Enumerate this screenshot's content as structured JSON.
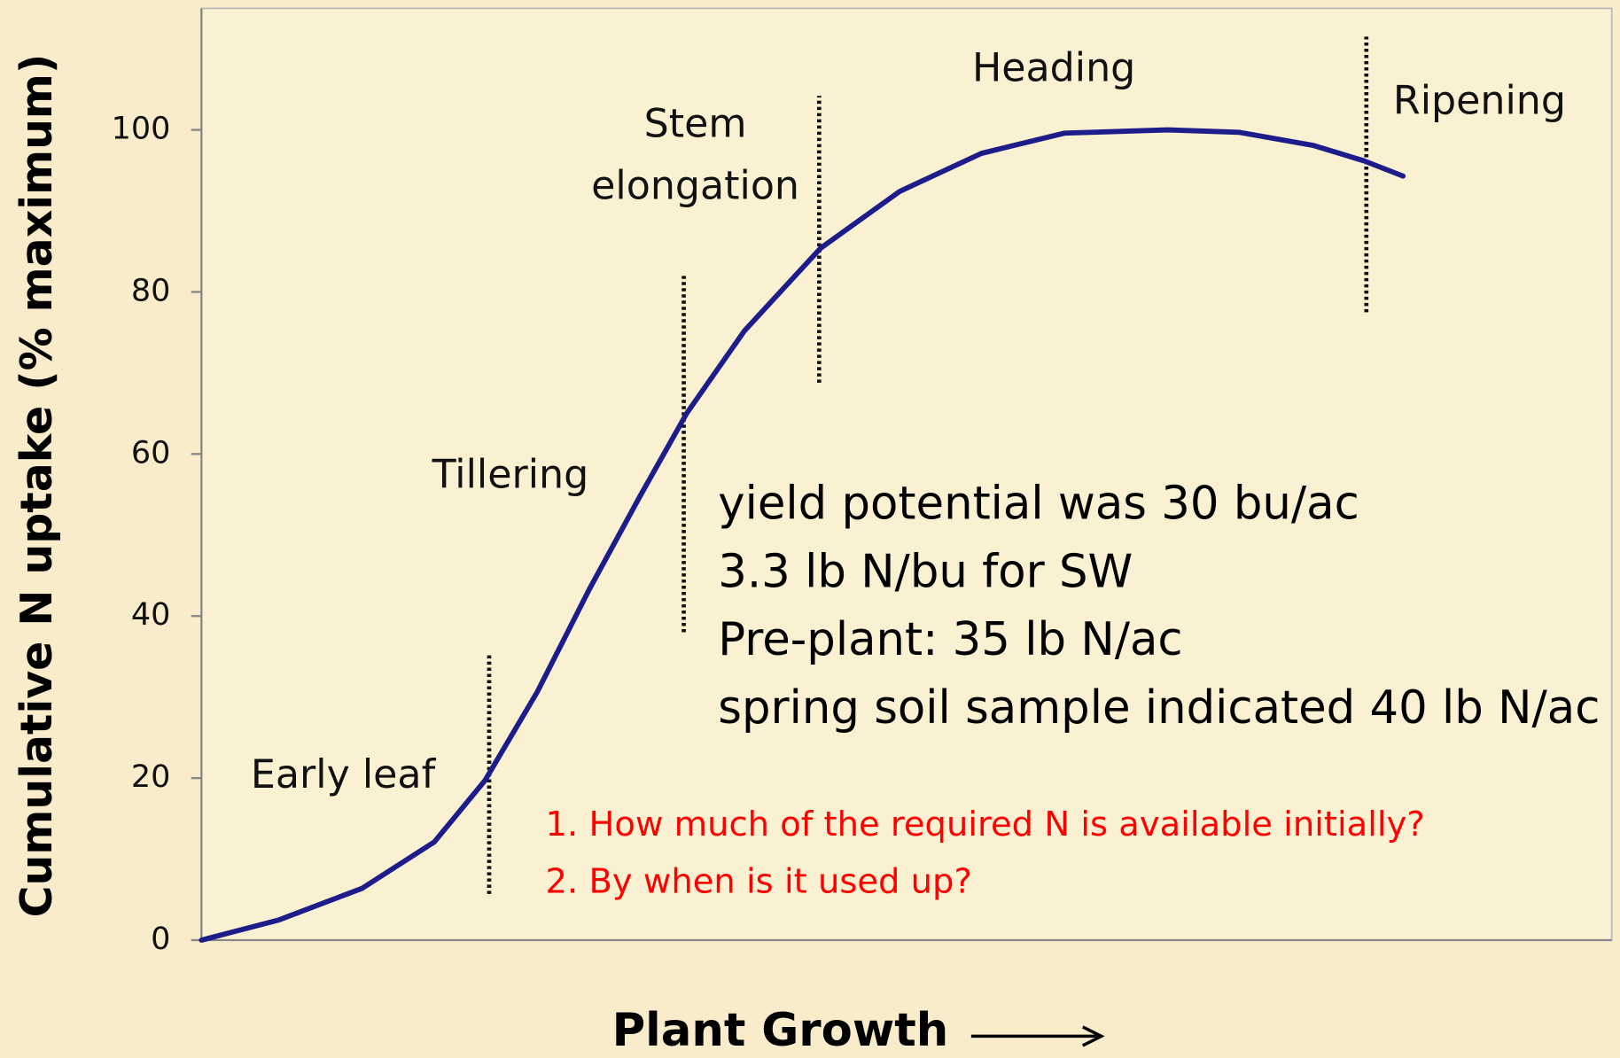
{
  "chart_data": {
    "type": "line",
    "y_label": "Cumulative N uptake (% maximum)",
    "x_label": "Plant Growth",
    "xlim": [
      0,
      100
    ],
    "ylim": [
      0,
      115
    ],
    "yticks": [
      0,
      20,
      40,
      60,
      80,
      100
    ],
    "series": [
      {
        "color": "#1c1c8a",
        "x": [
          0,
          5.5,
          11.4,
          16.5,
          20.1,
          23.8,
          27.5,
          31.1,
          34.4,
          38.5,
          43.9,
          49.5,
          55.3,
          61.2,
          68.5,
          73.6,
          78.8,
          82.4,
          85.2
        ],
        "values": [
          0,
          2.5,
          6.4,
          12.1,
          19.7,
          30.6,
          43.3,
          54.8,
          65,
          75.2,
          85.4,
          92.4,
          97.1,
          99.6,
          100,
          99.7,
          98.1,
          96.2,
          94.3
        ]
      }
    ],
    "stage_lines": [
      {
        "x": 20.4,
        "y": [
          5.7,
          35.4
        ]
      },
      {
        "x": 34.2,
        "y": [
          38,
          82.2
        ]
      },
      {
        "x": 43.8,
        "y": [
          68.8,
          104.2
        ]
      },
      {
        "x": 82.6,
        "y": [
          77.5,
          111.5
        ]
      }
    ],
    "stage_labels": [
      [
        "Early leaf"
      ],
      [
        "Tillering"
      ],
      [
        "Stem",
        "elongation"
      ],
      [
        "Heading"
      ],
      [
        "Ripening"
      ]
    ],
    "notes": [
      "yield potential was 30 bu/ac",
      "3.3 lb N/bu for SW",
      "Pre-plant: 35 lb N/ac",
      "spring soil sample indicated 40 lb N/ac"
    ],
    "questions": [
      "1. How much of the required N is available initially?",
      "2. By when is it used up?"
    ]
  }
}
